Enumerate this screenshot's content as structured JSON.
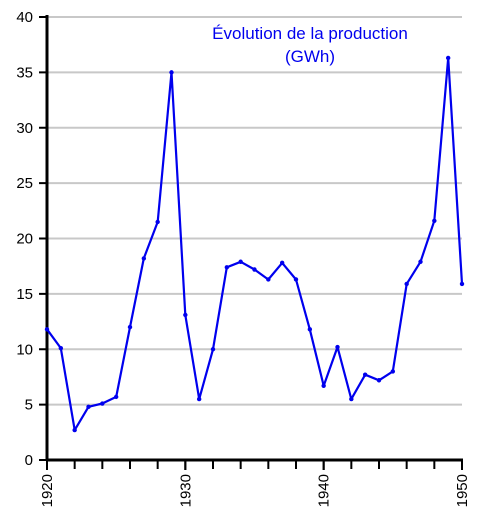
{
  "chart_data": {
    "type": "line",
    "title": "Évolution de la production\n(GWh)",
    "xlabel": "",
    "ylabel": "",
    "xlim": [
      1920,
      1950
    ],
    "ylim": [
      0,
      40
    ],
    "grid": true,
    "line_color": "#0000ee",
    "x_ticks": [
      "1920",
      "1930",
      "1940",
      "1950"
    ],
    "y_ticks": [
      "0",
      "5",
      "10",
      "15",
      "20",
      "25",
      "30",
      "35",
      "40"
    ],
    "series": [
      {
        "x": [
          1920,
          1921,
          1922,
          1923,
          1924,
          1925,
          1926,
          1927,
          1928,
          1929,
          1930,
          1931,
          1932,
          1933,
          1934,
          1935,
          1936,
          1937,
          1938,
          1939,
          1940,
          1941,
          1942,
          1943,
          1944,
          1945,
          1946,
          1947,
          1948,
          1949,
          1950
        ],
        "values": [
          11.8,
          10.1,
          2.7,
          4.8,
          5.1,
          5.7,
          12.0,
          18.2,
          21.5,
          35.0,
          13.1,
          5.5,
          10.0,
          17.4,
          17.9,
          17.2,
          16.3,
          17.8,
          16.3,
          11.8,
          6.7,
          10.2,
          5.5,
          7.7,
          7.2,
          8.0,
          15.9,
          17.9,
          21.6,
          36.3,
          15.9
        ]
      }
    ]
  }
}
